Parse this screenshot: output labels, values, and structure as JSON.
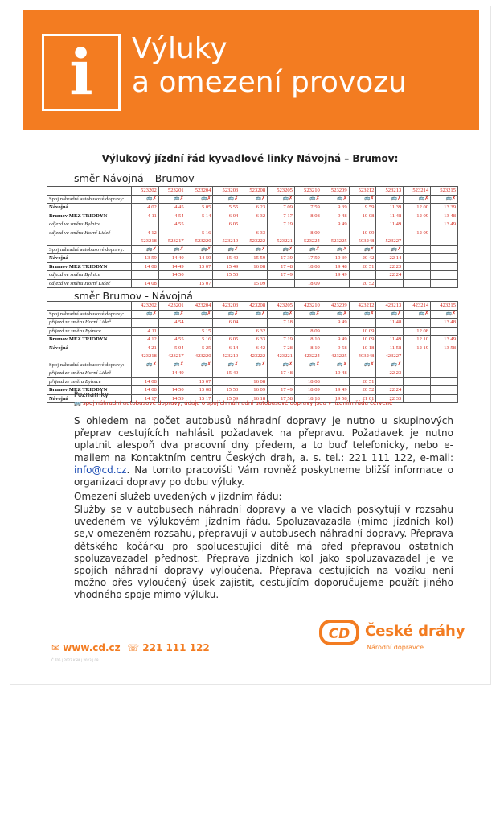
{
  "banner": {
    "title_line1": "Výluky",
    "title_line2": "a omezení provozu",
    "icon_letter": "i"
  },
  "doc_title": "Výlukový jízdní řád kyvadlové linky Návojná – Brumov:",
  "dir1": {
    "heading": "směr Návojná – Brumov",
    "blocks": [
      {
        "trains": [
          "523202",
          "523201",
          "523204",
          "523203",
          "523208",
          "523205",
          "523210",
          "523209",
          "523212",
          "523213",
          "523214",
          "523215"
        ],
        "rows": [
          {
            "label": "Spoj náhradní autobusové dopravy:",
            "type": "icons",
            "cells": [
              "🚌✗",
              "🚌✗",
              "🚌✗",
              "🚌✗",
              "🚌✗",
              "🚌✗",
              "🚌✗",
              "🚌✗",
              "🚌✗",
              "🚌✗",
              "🚌✗",
              "🚌✗"
            ]
          },
          {
            "label": "Návojná",
            "type": "bold",
            "cells": [
              "4 02",
              "4 45",
              "5 05",
              "5 55",
              "6 23",
              "7 09",
              "7 59",
              "9 39",
              "9 59",
              "11 39",
              "12 00",
              "13 39"
            ]
          },
          {
            "label": "Brumov MEZ TRIODYN",
            "type": "bold",
            "cells": [
              "4 11",
              "4 54",
              "5 14",
              "6 04",
              "6 32",
              "7 17",
              "8 08",
              "9 48",
              "10 08",
              "11 48",
              "12 09",
              "13 48"
            ]
          },
          {
            "label": "odjezd ve směru Bylnice",
            "type": "ital",
            "cells": [
              "",
              "4 55",
              "",
              "6 05",
              "",
              "7 19",
              "",
              "9 49",
              "",
              "11 49",
              "",
              "13 49"
            ]
          },
          {
            "label": "odjezd ve směru Horní Lideč",
            "type": "ital",
            "cells": [
              "4 12",
              "",
              "5 16",
              "",
              "6 33",
              "",
              "8 09",
              "",
              "10 09",
              "",
              "12 09",
              ""
            ]
          }
        ]
      },
      {
        "trains": [
          "523218",
          "523217",
          "523220",
          "523219",
          "523222",
          "523221",
          "523224",
          "523225",
          "503248",
          "523227",
          "",
          ""
        ],
        "rows": [
          {
            "label": "Spoj náhradní autobusové dopravy:",
            "type": "icons",
            "cells": [
              "🚌✗",
              "🚌✗",
              "🚌✗",
              "🚌✗",
              "🚌✗",
              "🚌✗",
              "🚌✗",
              "🚌✗",
              "🚌✗",
              "🚌✗",
              "",
              ""
            ]
          },
          {
            "label": "Návojná",
            "type": "bold",
            "cells": [
              "13 59",
              "14 40",
              "14 59",
              "15 40",
              "15 59",
              "17 39",
              "17 59",
              "19 39",
              "20 42",
              "22 14",
              "",
              ""
            ]
          },
          {
            "label": "Brumov MEZ TRIODYN",
            "type": "bold",
            "cells": [
              "14 08",
              "14 49",
              "15 07",
              "15 49",
              "16 08",
              "17 48",
              "18 08",
              "19 48",
              "20 51",
              "22 23",
              "",
              ""
            ]
          },
          {
            "label": "odjezd ve směru Bylnice",
            "type": "ital",
            "cells": [
              "",
              "14 50",
              "",
              "15 50",
              "",
              "17 49",
              "",
              "19 49",
              "",
              "22 24",
              "",
              ""
            ]
          },
          {
            "label": "odjezd ve směru Horní Lideč",
            "type": "ital",
            "cells": [
              "14 08",
              "",
              "15 07",
              "",
              "15 09",
              "",
              "18 09",
              "",
              "20 52",
              "",
              "",
              ""
            ]
          }
        ]
      }
    ]
  },
  "dir2": {
    "heading": "směr Brumov - Návojná",
    "blocks": [
      {
        "trains": [
          "423202",
          "423201",
          "423204",
          "423203",
          "423208",
          "423205",
          "423210",
          "423209",
          "423212",
          "423213",
          "423214",
          "423215"
        ],
        "rows": [
          {
            "label": "Spoj náhradní autobusové dopravy:",
            "type": "icons",
            "cells": [
              "🚌✗",
              "🚌✗",
              "🚌✗",
              "🚌✗",
              "🚌✗",
              "🚌✗",
              "🚌✗",
              "🚌✗",
              "🚌✗",
              "🚌✗",
              "🚌✗",
              "🚌✗"
            ]
          },
          {
            "label": "příjezd ze směru Horní Lideč",
            "type": "ital",
            "cells": [
              "",
              "4 54",
              "",
              "6 04",
              "",
              "7 18",
              "",
              "9 49",
              "",
              "11 48",
              "",
              "13 48"
            ]
          },
          {
            "label": "příjezd ze směru Bylnice",
            "type": "ital",
            "cells": [
              "4 11",
              "",
              "5 15",
              "",
              "6 32",
              "",
              "8 09",
              "",
              "10 09",
              "",
              "12 08",
              ""
            ]
          },
          {
            "label": "Brumov MEZ TRIODYN",
            "type": "bold",
            "cells": [
              "4 12",
              "4 55",
              "5 16",
              "6 05",
              "6 33",
              "7 19",
              "8 10",
              "9 49",
              "10 09",
              "11 49",
              "12 10",
              "13 49"
            ]
          },
          {
            "label": "Návojná",
            "type": "bold",
            "cells": [
              "4 21",
              "5 04",
              "5 25",
              "6 14",
              "6 42",
              "7 28",
              "8 19",
              "9 58",
              "10 18",
              "11 58",
              "12 19",
              "13 58"
            ]
          }
        ]
      },
      {
        "trains": [
          "423218",
          "423217",
          "423220",
          "423219",
          "423222",
          "423221",
          "423224",
          "423225",
          "403248",
          "423227",
          "",
          ""
        ],
        "rows": [
          {
            "label": "Spoj náhradní autobusové dopravy:",
            "type": "icons",
            "cells": [
              "🚌✗",
              "🚌✗",
              "🚌✗",
              "🚌✗",
              "🚌✗",
              "🚌✗",
              "🚌✗",
              "🚌✗",
              "🚌✗",
              "🚌✗",
              "",
              ""
            ]
          },
          {
            "label": "příjezd ze směru Horní Lideč",
            "type": "ital",
            "cells": [
              "",
              "14 49",
              "",
              "15 49",
              "",
              "17 48",
              "",
              "19 48",
              "",
              "22 23",
              "",
              ""
            ]
          },
          {
            "label": "příjezd ze směru Bylnice",
            "type": "ital",
            "cells": [
              "14 08",
              "",
              "15 07",
              "",
              "16 08",
              "",
              "18 08",
              "",
              "20 51",
              "",
              "",
              ""
            ]
          },
          {
            "label": "Brumov MEZ TRIODYN",
            "type": "bold",
            "cells": [
              "14 08",
              "14 50",
              "15 08",
              "15 50",
              "16 09",
              "17 49",
              "18 09",
              "19 49",
              "20 52",
              "22 24",
              "",
              ""
            ]
          },
          {
            "label": "Návojná",
            "type": "bold",
            "cells": [
              "14 17",
              "14 59",
              "15 17",
              "15 59",
              "16 18",
              "17 58",
              "18 18",
              "19 58",
              "21 01",
              "22 33",
              "",
              ""
            ]
          }
        ]
      }
    ]
  },
  "notes": {
    "title": "Poznámky",
    "line": "🚌 spoj náhradní autobusové dopravy, údaje o spojích náhradní autobusové dopravy jsou v jízdním řádu červeně"
  },
  "paragraph1": {
    "text_before": "S ohledem na počet autobusů náhradní dopravy je nutno u skupinových přeprav cestujících nahlásit požadavek na přepravu. Požadavek je nutno uplatnit alespoň dva pracovní dny předem, a to buď telefonicky, nebo e-mailem na Kontaktním centru Českých drah, a. s. tel.: 221 111 122, e-mail: ",
    "email": "info@cd.cz",
    "text_after": ". Na tomto pracovišti Vám rovněž poskytneme bližší informace o organizaci dopravy po dobu výluky."
  },
  "paragraph2": {
    "heading": "Omezení služeb uvedených v jízdním řádu:",
    "text": "Služby se v autobusech náhradní dopravy a ve vlacích poskytují v rozsahu uvedeném ve výlukovém jízdním řádu. Spoluzavazadla (mimo jízdních kol) se,v omezeném rozsahu, přepravují v autobusech náhradní dopravy. Přeprava dětského kočárku pro spolucestující dítě má před přepravou ostatních spoluzavazadel přednost. Přeprava jízdních kol jako spoluzavazadel je ve spojích náhradní dopravy vyloučena. Přeprava cestujících na vozíku není možno přes vyloučený úsek zajistit, cestujícím doporučujeme použít jiného vhodného spoje mimo výluku."
  },
  "footer": {
    "web": "www.cd.cz",
    "phone": "221 111 122",
    "small": "Č.T05 | 2022   KSM | 2023 | 08",
    "brand": "České dráhy",
    "brand_sub": "Národní dopravce",
    "brand_color": "#f37c21"
  }
}
